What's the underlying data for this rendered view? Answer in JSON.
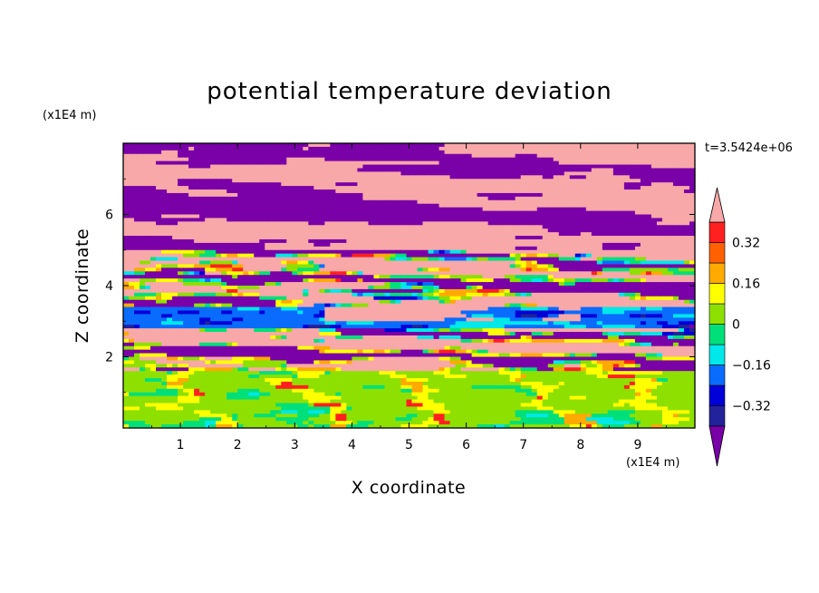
{
  "chart_data": {
    "type": "heatmap",
    "title": "potential temperature deviation",
    "xlabel": "X coordinate",
    "ylabel": "Z coordinate",
    "x_unit": "(x1E4 m)",
    "y_unit": "(x1E4 m)",
    "time_label": "t=3.5424e+06",
    "xlim": [
      0,
      10
    ],
    "ylim": [
      0,
      8
    ],
    "x_ticks": [
      "1",
      "2",
      "3",
      "4",
      "5",
      "6",
      "7",
      "8",
      "9"
    ],
    "y_ticks": [
      "2",
      "4",
      "6"
    ],
    "colorbar": {
      "tick_labels": [
        "0.32",
        "0.16",
        "0",
        "−0.16",
        "−0.32"
      ],
      "tick_values": [
        0.32,
        0.16,
        0,
        -0.16,
        -0.32
      ],
      "levels": [
        -0.4,
        -0.32,
        -0.24,
        -0.16,
        -0.08,
        0,
        0.08,
        0.16,
        0.24,
        0.32,
        0.4
      ],
      "colors": [
        "#7a00a8",
        "#22229a",
        "#0000d8",
        "#0a6cff",
        "#00e8e8",
        "#00e07a",
        "#8ee000",
        "#ffff00",
        "#ffaa00",
        "#ff6000",
        "#ff2020",
        "#f8a8a8"
      ],
      "extend": "both"
    },
    "field_bands": [
      {
        "z": [
          7.2,
          8.0
        ],
        "value": "mixed pink/purple"
      },
      {
        "z": [
          5.0,
          7.2
        ],
        "value": "alternating purple and pink layers"
      },
      {
        "z": [
          3.4,
          5.0
        ],
        "value": "multicolor layered structures"
      },
      {
        "z": [
          2.8,
          3.4
        ],
        "value": "blue and cyan"
      },
      {
        "z": [
          1.6,
          2.8
        ],
        "value": "pink and purple streaks"
      },
      {
        "z": [
          0.0,
          1.6
        ],
        "value": "green, yellow, cyan plumes"
      }
    ]
  }
}
